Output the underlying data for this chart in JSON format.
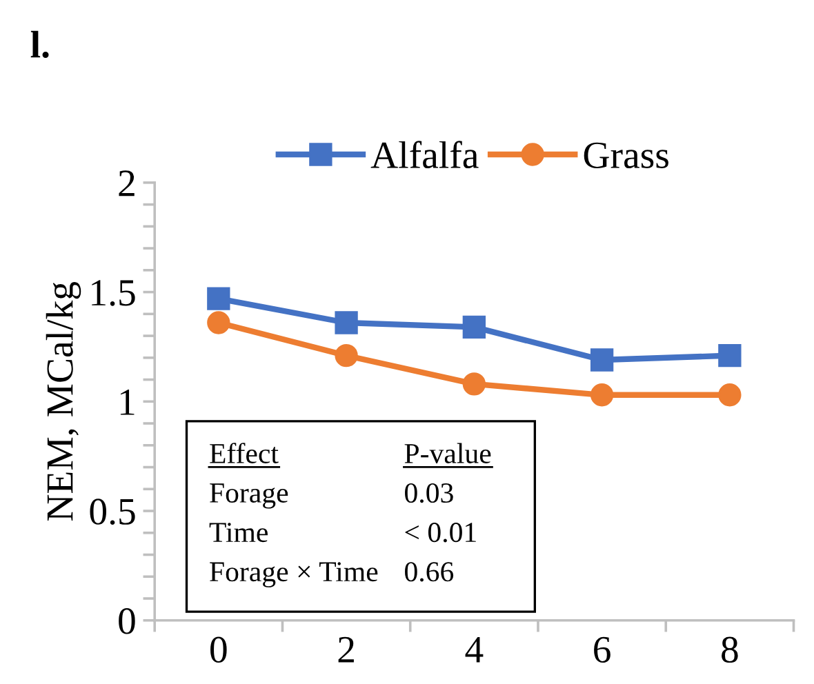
{
  "chart_data": {
    "type": "line",
    "title": "l.",
    "ylabel": "NEM, MCal/kg",
    "categories": [
      "0",
      "2",
      "4",
      "6",
      "8"
    ],
    "series": [
      {
        "name": "Alfalfa",
        "color": "#4472c4",
        "marker": "square",
        "values": [
          1.47,
          1.36,
          1.34,
          1.19,
          1.21
        ]
      },
      {
        "name": "Grass",
        "color": "#ed7d31",
        "marker": "circle",
        "values": [
          1.36,
          1.21,
          1.08,
          1.03,
          1.03
        ]
      }
    ],
    "ylim": [
      0,
      2
    ],
    "yticks": [
      0,
      0.5,
      1,
      1.5,
      2
    ],
    "grid": false,
    "legend": "top",
    "annotations": [
      "Effect",
      "P-value",
      "Forage",
      "0.03",
      "Time",
      "< 0.01",
      "Forage × Time",
      "0.66"
    ]
  }
}
